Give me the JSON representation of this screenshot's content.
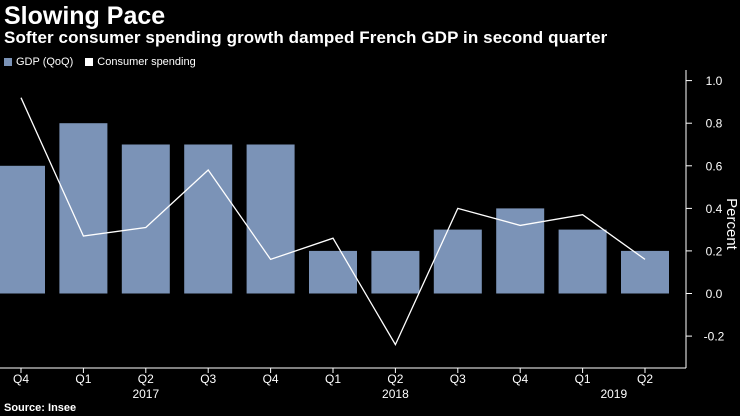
{
  "title": "Slowing Pace",
  "subtitle": "Softer consumer spending growth damped French GDP in second quarter",
  "source": "Source: Insee",
  "colors": {
    "background": "#000000",
    "bar": "#7b93b7",
    "line": "#ffffff",
    "text": "#ffffff",
    "axis": "#ffffff"
  },
  "legend": [
    {
      "label": "GDP (QoQ)",
      "color": "#7b93b7",
      "shape": "square"
    },
    {
      "label": "Consumer spending",
      "color": "#ffffff",
      "shape": "square"
    }
  ],
  "chart_data": {
    "type": "bar",
    "categories": [
      "Q4",
      "Q1",
      "Q2",
      "Q3",
      "Q4",
      "Q1",
      "Q2",
      "Q3",
      "Q4",
      "Q1",
      "Q2"
    ],
    "year_labels": [
      {
        "label": "2017",
        "category_index": 2
      },
      {
        "label": "2018",
        "category_index": 6
      },
      {
        "label": "2019",
        "category_index": 9.5
      }
    ],
    "series": [
      {
        "name": "GDP (QoQ)",
        "type": "bar",
        "values": [
          0.6,
          0.8,
          0.7,
          0.7,
          0.7,
          0.2,
          0.2,
          0.3,
          0.4,
          0.3,
          0.2
        ]
      },
      {
        "name": "Consumer spending",
        "type": "line",
        "values": [
          0.92,
          0.27,
          0.31,
          0.58,
          0.16,
          0.26,
          -0.24,
          0.4,
          0.32,
          0.37,
          0.16
        ]
      }
    ],
    "ylabel": "Percent",
    "ylim": [
      -0.35,
      1.05
    ],
    "yticks": [
      1.0,
      0.8,
      0.6,
      0.4,
      0.2,
      0.0,
      -0.2
    ],
    "ytick_labels": [
      "1.0",
      "0.8",
      "0.6",
      "0.4",
      "0.2",
      "0.0",
      "-0.2"
    ],
    "y_axis_side": "right",
    "grid": false,
    "legend_position": "top-left"
  }
}
